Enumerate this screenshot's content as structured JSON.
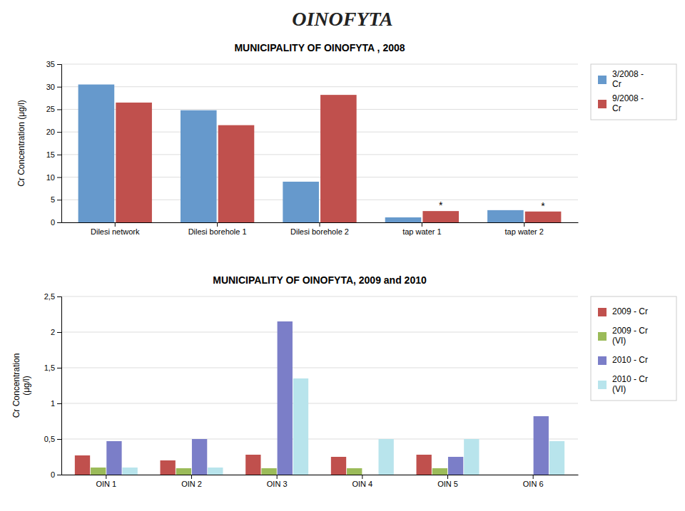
{
  "title": "OINOFYTA",
  "chart_data": [
    {
      "type": "bar",
      "title": "MUNICIPALITY OF OINOFYTA , 2008",
      "ylabel": "Cr Concentration (μg/l)",
      "categories": [
        "Dilesi network",
        "Dilesi borehole 1",
        "Dilesi borehole 2",
        "tap water 1",
        "tap water 2"
      ],
      "series": [
        {
          "name": "3/2008 -\nCr",
          "color": "#6699CC",
          "values": [
            30.5,
            24.8,
            9.0,
            1.1,
            2.7
          ]
        },
        {
          "name": "9/2008 -\nCr",
          "color": "#C0504D",
          "values": [
            26.5,
            21.5,
            28.2,
            2.5,
            2.4
          ]
        }
      ],
      "ylim": [
        0,
        35
      ],
      "yticks": [
        0,
        5,
        10,
        15,
        20,
        25,
        30,
        35
      ],
      "grid": true,
      "legend": "upper right",
      "annotations": [
        {
          "text": "*",
          "series": "9/2008 -\nCr",
          "category": "tap water 1"
        },
        {
          "text": "*",
          "series": "9/2008 -\nCr",
          "category": "tap water 2"
        }
      ]
    },
    {
      "type": "bar",
      "title": "MUNICIPALITY OF OINOFYTA, 2009 and 2010",
      "ylabel": "Cr Concentration\n(μg/l)",
      "categories": [
        "OIN 1",
        "OIN 2",
        "OIN 3",
        "OIN 4",
        "OIN 5",
        "OIN 6"
      ],
      "series": [
        {
          "name": "2009 - Cr",
          "color": "#C0504D",
          "values": [
            0.27,
            0.2,
            0.28,
            0.25,
            0.28,
            0.0
          ]
        },
        {
          "name": "2009 - Cr\n(VI)",
          "color": "#9BBB59",
          "values": [
            0.1,
            0.09,
            0.09,
            0.09,
            0.09,
            0.0
          ]
        },
        {
          "name": "2010 - Cr",
          "color": "#7B7EC8",
          "values": [
            0.47,
            0.5,
            2.15,
            0.0,
            0.25,
            0.82
          ]
        },
        {
          "name": "2010 - Cr\n(VI)",
          "color": "#B8E4EC",
          "values": [
            0.1,
            0.1,
            1.35,
            0.5,
            0.5,
            0.47
          ]
        }
      ],
      "ylim": [
        0,
        2.5
      ],
      "yticks": [
        0,
        {
          "value": 0.5,
          "label": "0,5"
        },
        1,
        {
          "value": 1.5,
          "label": "1,5"
        },
        2,
        {
          "value": 2.5,
          "label": "2,5"
        }
      ],
      "grid": true,
      "legend": "upper right"
    }
  ]
}
